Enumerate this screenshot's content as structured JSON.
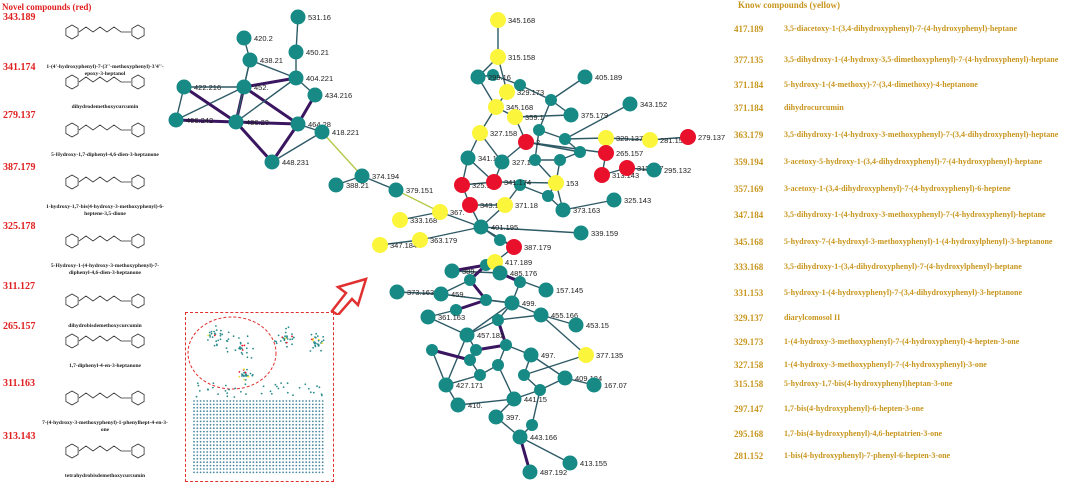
{
  "novel_title": "Novel compounds (red)",
  "known_title": "Know compounds (yellow)",
  "novel": [
    {
      "mass": "343.189",
      "name": "1-(4'-hydroxyphenyl)-7-(3''-methoxyphenyl)-3'4''-epoxy-3-heptanol"
    },
    {
      "mass": "341.174",
      "name": "dihydrodemethoxycurcumin"
    },
    {
      "mass": "279.137",
      "name": "5-Hydroxy-1,7-diphenyl-4,6-dien-3-heptanone"
    },
    {
      "mass": "387.179",
      "name": "1-hydroxy-1,7-bis(4-hydroxy-3-methoxyphenyl)-6-heptene-3,5-dione"
    },
    {
      "mass": "325.178",
      "name": "5-Hydroxy-1-(4-hydroxy-3-methoxyphenyl)-7-diphenyl-4,6-dien-3-heptanone"
    },
    {
      "mass": "311.127",
      "name": "dihydrobisdemethoxycurcumin"
    },
    {
      "mass": "265.157",
      "name": "1,7-diphenyl-4-en-3-heptanone"
    },
    {
      "mass": "311.163",
      "name": "7-(4-hydroxy-3-methoxyphenyl)-1-phenylhept-4-en-3-one"
    },
    {
      "mass": "313.143",
      "name": "tetrahydrobisdemethoxycurcumin"
    }
  ],
  "known": [
    {
      "mass": "417.189",
      "name": "3,5-diacetoxy-1-(3,4-dihydroxyphenyl)-7-(4-hydroxyphenyl)-heptane"
    },
    {
      "mass": "377.135",
      "name": "3,5-dihydroxy-1-(4-hydroxy-3,5-dimethoxyphenyl)-7-(4-hydroxyphenyl)-heptane"
    },
    {
      "mass": "371.184",
      "name": "5-hydroxy-1-(4-methoxy)-7-(3,4-dimethoxy)-4-heptanone"
    },
    {
      "mass": "371.184",
      "name": "dihydrocurcumin"
    },
    {
      "mass": "363.179",
      "name": "3,5-dihydroxy-1-(4-hydroxy-3-methoxyphenyl)-7-(3,4-dihydroxyphenyl)-heptane"
    },
    {
      "mass": "359.194",
      "name": "3-acetoxy-5-hydroxy-1-(3,4-dihydroxyphenyl)-7-(4-hydroxyphenyl)-heptane"
    },
    {
      "mass": "357.169",
      "name": "3-acetoxy-1-(3,4-dihydroxyphenyl)-7-(4-hydroxyphenyl)-6-heptene"
    },
    {
      "mass": "347.184",
      "name": "3,5-dihydroxy-1-(4-hydroxy-3-methoxyphenyl)-7-(4-hydroxyphenyl)-heptane"
    },
    {
      "mass": "345.168",
      "name": "5-hydroxy-7-(4-hydroxyl-3-methoxyphenyl)-1-(4-hydroxylphenyl)-3-heptanone"
    },
    {
      "mass": "333.168",
      "name": "3,5-dihydroxy-1-(3,4-dihydroxyphenyl)-7-(4-hydroxylphenyl)-heptane"
    },
    {
      "mass": "331.153",
      "name": "5-hydroxy-1-(4-hydroxyphenyl)-7-(3,4-dihydroxyphenyl)-3-heptanone"
    },
    {
      "mass": "329.137",
      "name": "diarylcomosol II"
    },
    {
      "mass": "329.173",
      "name": "1-(4-hydroxy-3-methoxyphenyl)-7-(4-hydroxyphenyl)-4-hepten-3-one"
    },
    {
      "mass": "327.158",
      "name": "1-(4-hydroxy-3-methoxyphenyl)-7-(4-hydroxyphenyl)-3-one"
    },
    {
      "mass": "315.158",
      "name": "5-hydroxy-1,7-bis(4-hydroxyphenyl)heptan-3-one"
    },
    {
      "mass": "297.147",
      "name": "1,7-bis(4-hydroxyphenyl)-6-hepten-3-one"
    },
    {
      "mass": "295.168",
      "name": "1,7-bis(4-hydroxyphenyl)-4,6-heptatrien-3-one"
    },
    {
      "mass": "281.152",
      "name": "1-bis(4-hydroxyphenyl)-7-phenyl-6-hepten-3-one"
    }
  ],
  "colors": {
    "novel": "#e8102a",
    "known": "#fbf53c",
    "other": "#178a86",
    "edge": "#3a1a5a",
    "title_red": "#e02020",
    "title_gold": "#c8961e"
  },
  "network": {
    "nodes": [
      {
        "id": "531.16",
        "type": "other"
      },
      {
        "id": "420.2",
        "type": "other"
      },
      {
        "id": "450.21",
        "type": "other"
      },
      {
        "id": "438.21",
        "type": "other"
      },
      {
        "id": "422.216",
        "type": "other"
      },
      {
        "id": "452.",
        "type": "other"
      },
      {
        "id": "404.221",
        "type": "other"
      },
      {
        "id": "434.216",
        "type": "other"
      },
      {
        "id": "406.242",
        "type": "other"
      },
      {
        "id": "436.23",
        "type": "other"
      },
      {
        "id": "464.28",
        "type": "other"
      },
      {
        "id": "418.221",
        "type": "other"
      },
      {
        "id": "448.231",
        "type": "other"
      },
      {
        "id": "374.194",
        "type": "other"
      },
      {
        "id": "388.21",
        "type": "other"
      },
      {
        "id": "379.151",
        "type": "other"
      },
      {
        "id": "345.168",
        "type": "known"
      },
      {
        "id": "315.158",
        "type": "known"
      },
      {
        "id": "299.16",
        "type": "other"
      },
      {
        "id": "329.173",
        "type": "known"
      },
      {
        "id": "405.189",
        "type": "other"
      },
      {
        "id": "345.168b",
        "label": "345.168",
        "type": "known"
      },
      {
        "id": "375.179",
        "type": "other"
      },
      {
        "id": "343.152",
        "type": "other"
      },
      {
        "id": "327.158",
        "type": "known"
      },
      {
        "id": "359.1",
        "type": "known"
      },
      {
        "id": "329.137",
        "type": "known"
      },
      {
        "id": "281.152",
        "type": "known"
      },
      {
        "id": "279.137",
        "type": "novel"
      },
      {
        "id": "341.1",
        "type": "other"
      },
      {
        "id": "327.1",
        "type": "other"
      },
      {
        "id": "2",
        "type": "novel"
      },
      {
        "id": "265.157",
        "type": "novel"
      },
      {
        "id": "313.143",
        "type": "novel"
      },
      {
        "id": "311.127",
        "type": "novel"
      },
      {
        "id": "295.132",
        "type": "other"
      },
      {
        "id": "325.178",
        "type": "novel"
      },
      {
        "id": "341.174",
        "type": "novel"
      },
      {
        "id": "153",
        "type": "known"
      },
      {
        "id": "373.163",
        "type": "other"
      },
      {
        "id": "325.143",
        "type": "other"
      },
      {
        "id": "343.189",
        "type": "novel"
      },
      {
        "id": "371.18",
        "type": "known"
      },
      {
        "id": "333.168",
        "type": "known"
      },
      {
        "id": "367.",
        "type": "known"
      },
      {
        "id": "401.195",
        "type": "other"
      },
      {
        "id": "339.159",
        "type": "other"
      },
      {
        "id": "347.184",
        "type": "known"
      },
      {
        "id": "363.179",
        "type": "known"
      },
      {
        "id": "387.179",
        "type": "novel"
      },
      {
        "id": "417.189",
        "type": "known"
      },
      {
        "id": "389.",
        "type": "other"
      },
      {
        "id": "485.176",
        "type": "other"
      },
      {
        "id": "373.163b",
        "label": "373.163",
        "type": "other"
      },
      {
        "id": "459.",
        "type": "other"
      },
      {
        "id": "157.145",
        "type": "other"
      },
      {
        "id": "361.163",
        "type": "other"
      },
      {
        "id": "499.",
        "type": "other"
      },
      {
        "id": "457.182",
        "type": "other"
      },
      {
        "id": "455.166",
        "type": "other"
      },
      {
        "id": "453.15",
        "type": "other"
      },
      {
        "id": "377.135",
        "type": "known"
      },
      {
        "id": "427.171",
        "type": "other"
      },
      {
        "id": "409.124",
        "type": "other"
      },
      {
        "id": "167.07",
        "type": "other"
      },
      {
        "id": "410.",
        "type": "other"
      },
      {
        "id": "441.15",
        "type": "other"
      },
      {
        "id": "397.",
        "type": "other"
      },
      {
        "id": "443.166",
        "type": "other"
      },
      {
        "id": "413.155",
        "type": "other"
      },
      {
        "id": "487.192",
        "type": "other"
      },
      {
        "id": "497.",
        "type": "other"
      }
    ]
  }
}
